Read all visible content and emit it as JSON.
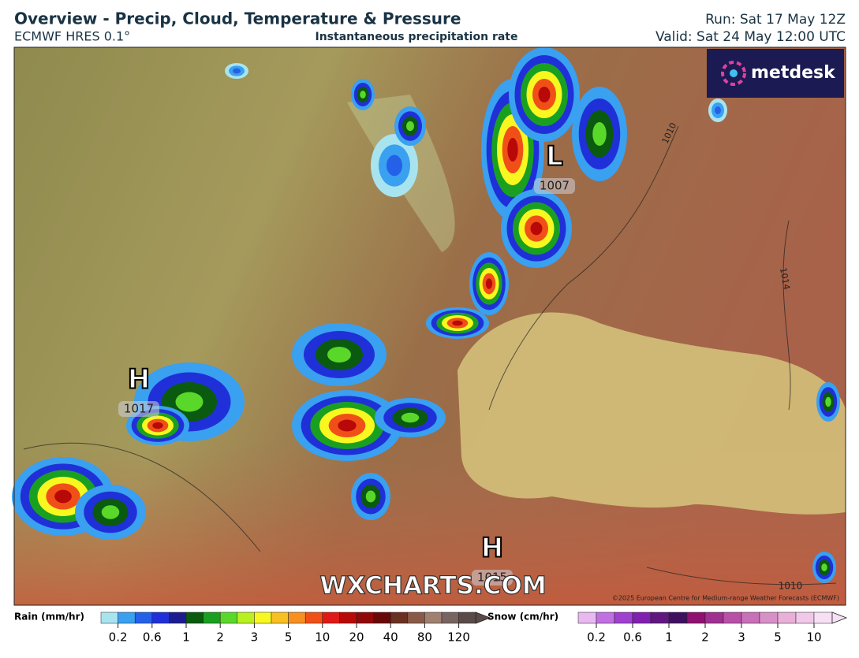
{
  "header": {
    "title": "Overview - Precip, Cloud, Temperature & Pressure",
    "model": "ECMWF HRES 0.1°",
    "subtitle": "Instantaneous precipitation rate",
    "run": "Run: Sat 17 May 12Z",
    "valid": "Valid: Sat 24 May 12:00 UTC"
  },
  "map": {
    "logo": "metdesk",
    "watermark": "WXCHARTS.COM",
    "copyright": "©2025 European Centre for Medium-range Weather Forecasts (ECMWF)",
    "pressure_centers": [
      {
        "symbol": "H",
        "value": 1017
      },
      {
        "symbol": "L",
        "value": 1007
      },
      {
        "symbol": "H",
        "value": 1015
      }
    ],
    "isobar_labels": [
      1010,
      1014,
      1010
    ]
  },
  "legend": {
    "rain": {
      "label": "Rain (mm/hr)",
      "ticks": [
        0.2,
        0.6,
        1,
        2,
        3,
        5,
        10,
        20,
        40,
        80,
        120
      ],
      "colors": [
        "#a8e4ef",
        "#3aa0f0",
        "#2460e8",
        "#2030d8",
        "#1c1c90",
        "#0a5a10",
        "#1aa020",
        "#5ad82a",
        "#b8f020",
        "#f8f820",
        "#f8c020",
        "#f89020",
        "#f05018",
        "#e01818",
        "#b80808",
        "#900808",
        "#680808",
        "#6a3020",
        "#8a5a48",
        "#a08070",
        "#786460",
        "#5a4a48"
      ]
    },
    "snow": {
      "label": "Snow (cm/hr)",
      "ticks": [
        0.2,
        0.6,
        1,
        2,
        3,
        5,
        10
      ],
      "colors": [
        "#e8b8f0",
        "#c070e0",
        "#a040d0",
        "#8020b0",
        "#601880",
        "#401060",
        "#901070",
        "#a03090",
        "#b850a8",
        "#c870b8",
        "#d890c8",
        "#e8b0d8",
        "#f0c8e8",
        "#f8e0f4"
      ]
    }
  }
}
